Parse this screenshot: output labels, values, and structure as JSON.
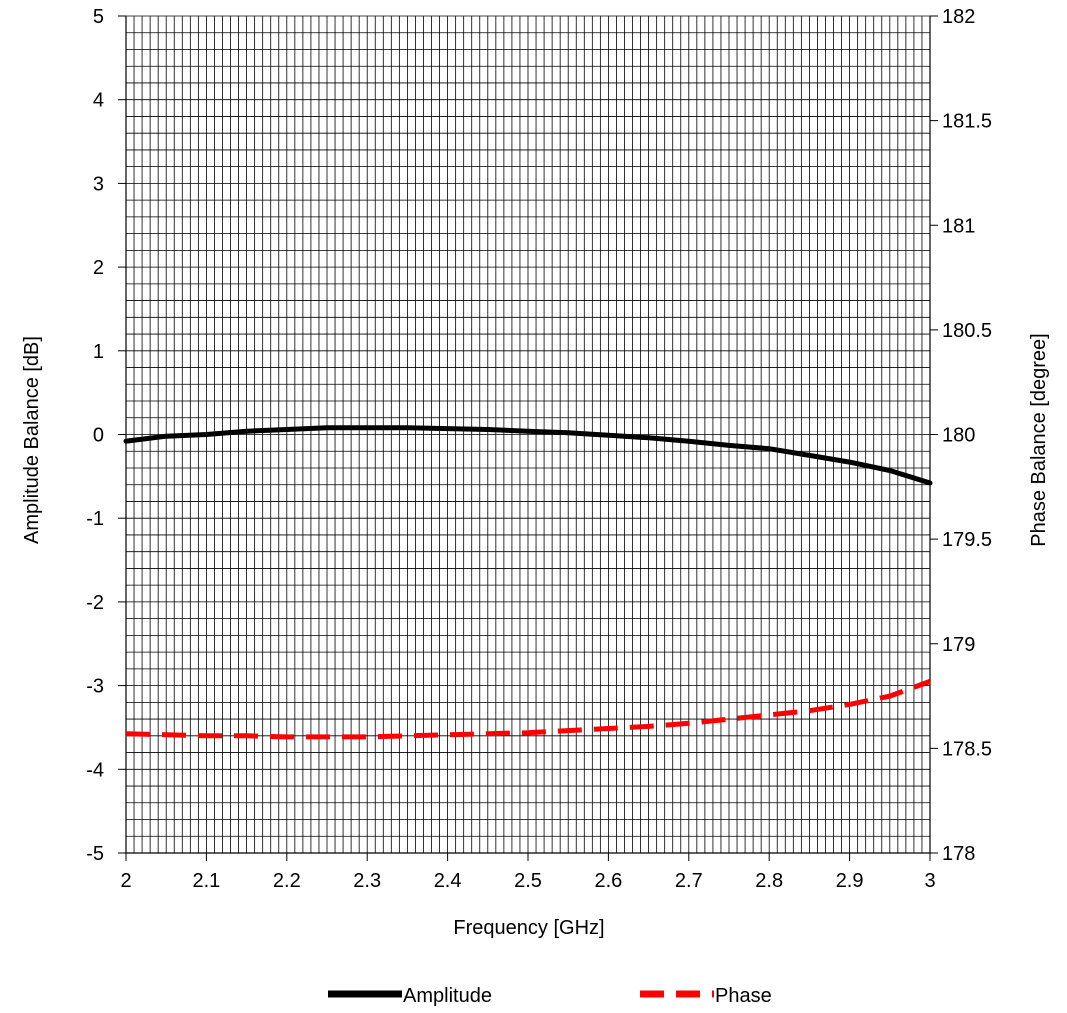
{
  "chart_data": {
    "type": "line",
    "title": "",
    "xlabel": "Frequency [GHz]",
    "ylabel": "Amplitude Balance [dB]",
    "y2label": "Phase Balance [degree]",
    "xlim": [
      2,
      3
    ],
    "ylim": [
      -5,
      5
    ],
    "y2lim": [
      178,
      182
    ],
    "x_ticks": [
      "2",
      "2.1",
      "2.2",
      "2.3",
      "2.4",
      "2.5",
      "2.6",
      "2.7",
      "2.8",
      "2.9",
      "3"
    ],
    "y_ticks": [
      "5",
      "4",
      "3",
      "2",
      "1",
      "0",
      "-1",
      "-2",
      "-3",
      "-4",
      "-5"
    ],
    "y2_ticks": [
      "182",
      "181.5",
      "181",
      "180.5",
      "180",
      "179.5",
      "179",
      "178.5",
      "178"
    ],
    "grid": true,
    "legend_position": "bottom",
    "series": [
      {
        "name": "Amplitude",
        "axis": "left",
        "color": "#000000",
        "style": "solid",
        "x": [
          2.0,
          2.05,
          2.1,
          2.15,
          2.2,
          2.25,
          2.3,
          2.35,
          2.4,
          2.45,
          2.5,
          2.55,
          2.6,
          2.65,
          2.7,
          2.75,
          2.8,
          2.85,
          2.9,
          2.95,
          3.0
        ],
        "values": [
          -0.08,
          -0.02,
          0.0,
          0.04,
          0.06,
          0.08,
          0.08,
          0.08,
          0.07,
          0.06,
          0.04,
          0.02,
          -0.01,
          -0.04,
          -0.08,
          -0.13,
          -0.17,
          -0.25,
          -0.33,
          -0.43,
          -0.58
        ]
      },
      {
        "name": "Phase",
        "axis": "right",
        "color": "#ff0000",
        "style": "dashed",
        "x": [
          2.0,
          2.05,
          2.1,
          2.15,
          2.2,
          2.25,
          2.3,
          2.35,
          2.4,
          2.45,
          2.5,
          2.55,
          2.6,
          2.65,
          2.7,
          2.75,
          2.8,
          2.85,
          2.9,
          2.95,
          3.0
        ],
        "values": [
          178.57,
          178.565,
          178.56,
          178.56,
          178.555,
          178.555,
          178.555,
          178.56,
          178.565,
          178.57,
          178.575,
          178.585,
          178.595,
          178.605,
          178.62,
          178.64,
          178.66,
          178.68,
          178.71,
          178.75,
          178.82
        ]
      }
    ]
  }
}
